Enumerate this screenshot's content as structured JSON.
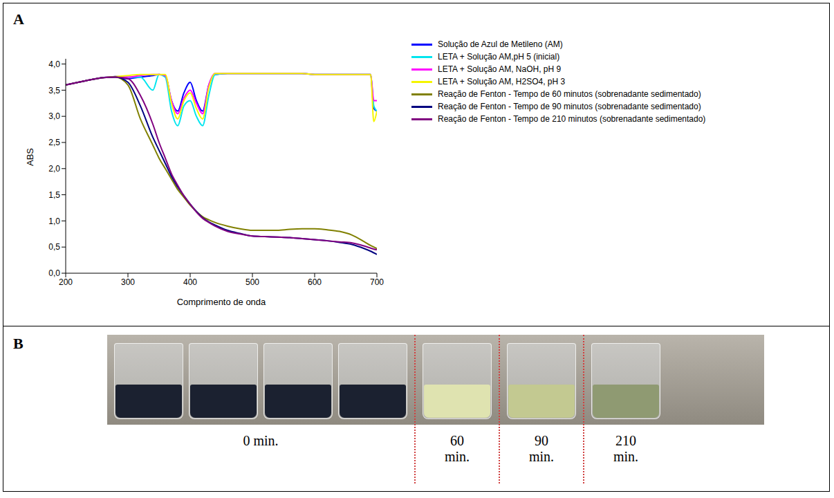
{
  "panel_labels": [
    "A",
    "B"
  ],
  "chart_data": {
    "type": "line",
    "x_label": "Comprimento de onda",
    "y_label": "ABS",
    "xlim": [
      200,
      700
    ],
    "xticks": [
      200,
      300,
      400,
      500,
      600,
      700
    ],
    "ylim": [
      0,
      4.1
    ],
    "yticks": [
      {
        "value": 0,
        "label": "0,0"
      },
      {
        "value": 0.5,
        "label": "0,5"
      },
      {
        "value": 1,
        "label": "1,0"
      },
      {
        "value": 1.5,
        "label": "1,5"
      },
      {
        "value": 2,
        "label": "2,0"
      },
      {
        "value": 2.5,
        "label": "2,5"
      },
      {
        "value": 3,
        "label": "3,0"
      },
      {
        "value": 3.5,
        "label": "3,5"
      },
      {
        "value": 4,
        "label": "4,0"
      }
    ],
    "legend": "right",
    "x": [
      200,
      220,
      240,
      260,
      280,
      300,
      320,
      340,
      350,
      360,
      370,
      380,
      390,
      400,
      410,
      420,
      430,
      440,
      460,
      480,
      500,
      520,
      540,
      560,
      580,
      600,
      620,
      640,
      660,
      680,
      690,
      695,
      700
    ],
    "series": [
      {
        "name": "Solução de Azul de Metileno (AM)",
        "color": "#0000ff",
        "values": [
          3.6,
          3.65,
          3.7,
          3.74,
          3.76,
          3.72,
          3.75,
          3.78,
          3.8,
          3.78,
          3.3,
          3.1,
          3.45,
          3.65,
          3.3,
          3.1,
          3.6,
          3.8,
          3.82,
          3.82,
          3.82,
          3.82,
          3.82,
          3.82,
          3.82,
          3.8,
          3.8,
          3.8,
          3.8,
          3.8,
          3.8,
          3.15,
          3.1
        ]
      },
      {
        "name": "LETA + Solução AM,pH 5 (inicial)",
        "color": "#00e5ee",
        "values": [
          3.6,
          3.65,
          3.7,
          3.74,
          3.76,
          3.75,
          3.75,
          3.5,
          3.8,
          3.75,
          3.1,
          2.82,
          3.2,
          3.3,
          3.0,
          2.82,
          3.4,
          3.8,
          3.82,
          3.82,
          3.82,
          3.82,
          3.82,
          3.82,
          3.82,
          3.8,
          3.8,
          3.8,
          3.8,
          3.8,
          3.8,
          3.2,
          3.1
        ]
      },
      {
        "name": "LETA + Solução AM, NaOH, pH 9",
        "color": "#ff00ff",
        "values": [
          3.6,
          3.65,
          3.7,
          3.74,
          3.76,
          3.75,
          3.78,
          3.8,
          3.8,
          3.78,
          3.3,
          3.05,
          3.35,
          3.5,
          3.25,
          3.05,
          3.6,
          3.82,
          3.82,
          3.82,
          3.82,
          3.82,
          3.82,
          3.82,
          3.82,
          3.8,
          3.8,
          3.8,
          3.8,
          3.8,
          3.8,
          3.3,
          3.3
        ]
      },
      {
        "name": "LETA + Solução AM, H2SO4, pH 3",
        "color": "#f5f500",
        "values": [
          3.6,
          3.65,
          3.7,
          3.74,
          3.76,
          3.78,
          3.8,
          3.8,
          3.8,
          3.8,
          3.25,
          2.95,
          3.3,
          3.45,
          3.15,
          2.95,
          3.55,
          3.82,
          3.82,
          3.82,
          3.82,
          3.82,
          3.82,
          3.82,
          3.82,
          3.8,
          3.8,
          3.8,
          3.8,
          3.8,
          3.8,
          2.9,
          3.1
        ]
      },
      {
        "name": "Reação de Fenton - Tempo de 60 minutos (sobrenadante sedimentado)",
        "color": "#808000",
        "values": [
          3.6,
          3.65,
          3.7,
          3.74,
          3.75,
          3.6,
          2.95,
          2.45,
          2.2,
          2.0,
          1.8,
          1.6,
          1.45,
          1.3,
          1.18,
          1.08,
          1.02,
          0.97,
          0.9,
          0.85,
          0.82,
          0.82,
          0.82,
          0.84,
          0.85,
          0.85,
          0.83,
          0.8,
          0.73,
          0.6,
          0.53,
          0.5,
          0.47
        ]
      },
      {
        "name": "Reação de Fenton - Tempo de 90 minutos (sobrenadante sedimentado)",
        "color": "#000080",
        "values": [
          3.6,
          3.65,
          3.7,
          3.74,
          3.75,
          3.65,
          3.2,
          2.6,
          2.35,
          2.1,
          1.85,
          1.65,
          1.48,
          1.32,
          1.18,
          1.06,
          0.98,
          0.92,
          0.82,
          0.76,
          0.71,
          0.7,
          0.69,
          0.68,
          0.66,
          0.64,
          0.62,
          0.59,
          0.55,
          0.47,
          0.42,
          0.39,
          0.36
        ]
      },
      {
        "name": "Reação de Fenton - Tempo de 210 minutos (sobrenadante sedimentado)",
        "color": "#800080",
        "values": [
          3.6,
          3.65,
          3.7,
          3.74,
          3.75,
          3.72,
          3.4,
          2.85,
          2.5,
          2.2,
          1.9,
          1.68,
          1.48,
          1.32,
          1.17,
          1.05,
          0.97,
          0.9,
          0.8,
          0.75,
          0.71,
          0.7,
          0.69,
          0.68,
          0.66,
          0.64,
          0.62,
          0.6,
          0.58,
          0.52,
          0.48,
          0.46,
          0.45
        ]
      }
    ]
  },
  "photo": {
    "groups": [
      {
        "label": "0 min.",
        "beakers": 4,
        "color": "#1b2130"
      },
      {
        "label": "60 min.",
        "beakers": 1,
        "color": "#dfe3b0"
      },
      {
        "label": "90 min.",
        "beakers": 1,
        "color": "#c3c991"
      },
      {
        "label": "210 min.",
        "beakers": 1,
        "color": "#8f9a72"
      }
    ]
  }
}
